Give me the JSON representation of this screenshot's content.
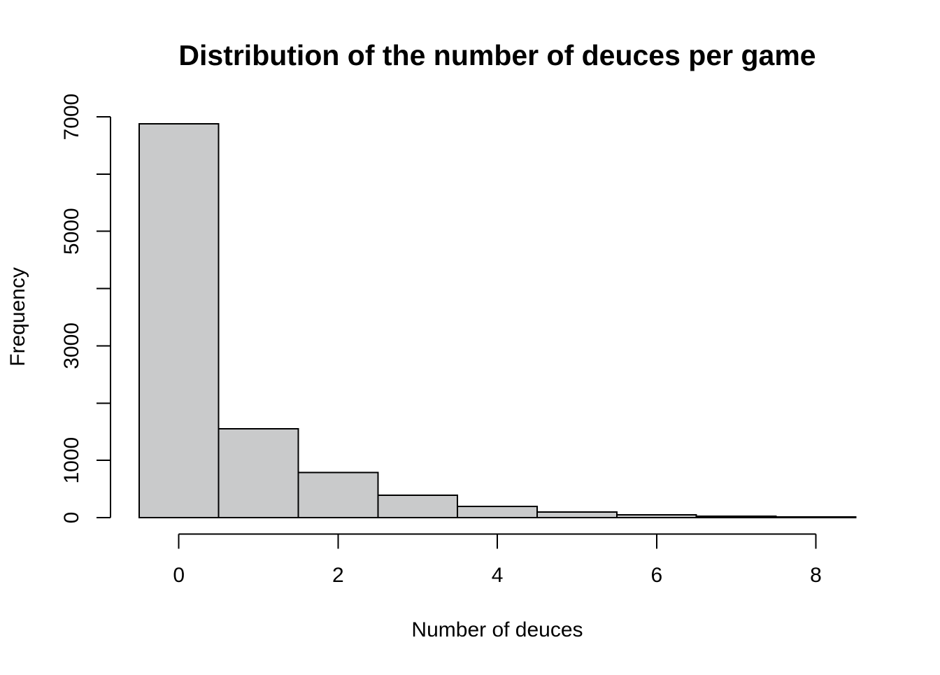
{
  "chart_data": {
    "type": "bar",
    "chart_kind": "histogram",
    "title": "Distribution of the number of deuces per game",
    "xlabel": "Number of deuces",
    "ylabel": "Frequency",
    "categories": [
      0,
      1,
      2,
      3,
      4,
      5,
      6,
      7,
      8
    ],
    "values": [
      6875,
      1550,
      790,
      390,
      195,
      100,
      50,
      25,
      12
    ],
    "bin_width": 1,
    "xlim": [
      -0.5,
      8.5
    ],
    "ylim": [
      0,
      7000
    ],
    "x_ticks": [
      0,
      2,
      4,
      6,
      8
    ],
    "x_tick_labels": [
      "0",
      "2",
      "4",
      "6",
      "8"
    ],
    "y_ticks": [
      0,
      1000,
      2000,
      3000,
      4000,
      5000,
      6000,
      7000
    ],
    "y_tick_labels": [
      "0",
      "1000",
      "",
      "3000",
      "",
      "5000",
      "",
      "7000"
    ],
    "grid": false,
    "legend_position": "none",
    "colors": {
      "bar_fill": "#C9CACB",
      "bar_stroke": "#000000",
      "axis": "#000000",
      "text": "#000000",
      "background": "#FFFFFF"
    }
  }
}
